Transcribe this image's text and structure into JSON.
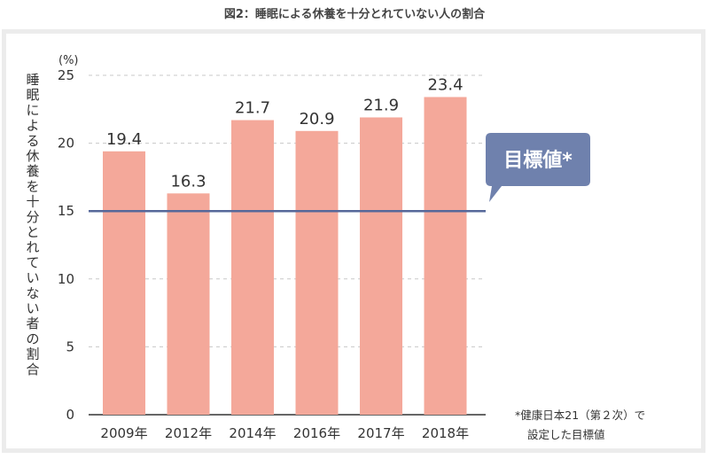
{
  "figure_title": "図2：睡眠による休養を十分とれていない人の割合",
  "callout": {
    "label": "目標値*"
  },
  "note": {
    "line1": "*健康日本21（第２次）で",
    "line2": "設定した目標値"
  },
  "colors": {
    "bar": "#f4a89a",
    "target_line": "#56689a",
    "callout_bg": "#6f81ad",
    "grid": "#c8c8c8"
  },
  "chart_data": {
    "type": "bar",
    "title": "",
    "xlabel": "",
    "ylabel": "睡眠による休養を十分とれていない者の割合",
    "y_unit": "(%)",
    "categories": [
      "2009年",
      "2012年",
      "2014年",
      "2016年",
      "2017年",
      "2018年"
    ],
    "values": [
      19.4,
      16.3,
      21.7,
      20.9,
      21.9,
      23.4
    ],
    "data_labels": [
      "19.4",
      "16.3",
      "21.7",
      "20.9",
      "21.9",
      "23.4"
    ],
    "ylim": [
      0,
      25
    ],
    "yticks": [
      0,
      5,
      10,
      15,
      20,
      25
    ],
    "grid": true,
    "target_value": 15
  }
}
